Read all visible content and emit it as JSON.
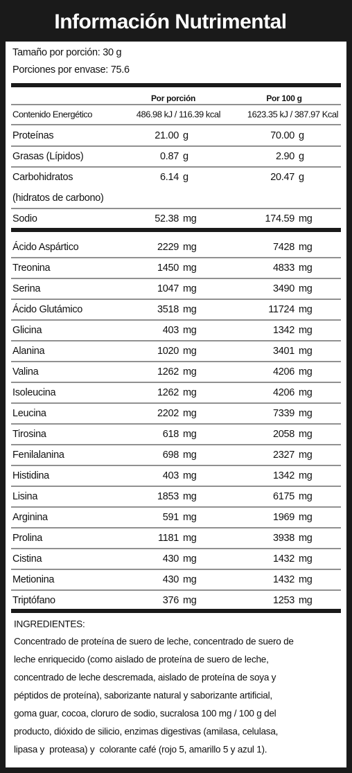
{
  "header": {
    "title": "Información Nutrimental"
  },
  "serving": {
    "size": "Tamaño por porción: 30 g",
    "servings": "Porciones por envase: 75.6"
  },
  "table": {
    "columns": [
      "Por porción",
      "Por 100 g"
    ],
    "energy": {
      "label": "Contenido Energético",
      "per_serving": "486.98 kJ / 116.39 kcal",
      "per_100g": "1623.35 kJ / 387.97 Kcal"
    },
    "nutrients": [
      {
        "label": "Proteínas",
        "per_serving": "21.00",
        "per_100g": "70.00",
        "unit": "g"
      },
      {
        "label": "Grasas (Lípidos)",
        "per_serving": "0.87",
        "per_100g": "2.90",
        "unit": "g"
      },
      {
        "label": "Carbohidratos",
        "sublabel": "(hidratos de carbono)",
        "per_serving": "6.14",
        "per_100g": "20.47",
        "unit": "g"
      },
      {
        "label": "Sodio",
        "per_serving": "52.38",
        "per_100g": "174.59",
        "unit": "mg"
      }
    ],
    "amino_acids": [
      {
        "label": "Ácido Aspártico",
        "per_serving": "2229",
        "per_100g": "7428",
        "unit": "mg"
      },
      {
        "label": "Treonina",
        "per_serving": "1450",
        "per_100g": "4833",
        "unit": "mg"
      },
      {
        "label": "Serina",
        "per_serving": "1047",
        "per_100g": "3490",
        "unit": "mg"
      },
      {
        "label": "Ácido Glutámico",
        "per_serving": "3518",
        "per_100g": "11724",
        "unit": "mg"
      },
      {
        "label": "Glicina",
        "per_serving": "403",
        "per_100g": "1342",
        "unit": "mg"
      },
      {
        "label": "Alanina",
        "per_serving": "1020",
        "per_100g": "3401",
        "unit": "mg"
      },
      {
        "label": "Valina",
        "per_serving": "1262",
        "per_100g": "4206",
        "unit": "mg"
      },
      {
        "label": "Isoleucina",
        "per_serving": "1262",
        "per_100g": "4206",
        "unit": "mg"
      },
      {
        "label": "Leucina",
        "per_serving": "2202",
        "per_100g": "7339",
        "unit": "mg"
      },
      {
        "label": "Tirosina",
        "per_serving": "618",
        "per_100g": "2058",
        "unit": "mg"
      },
      {
        "label": "Fenilalanina",
        "per_serving": "698",
        "per_100g": "2327",
        "unit": "mg"
      },
      {
        "label": "Histidina",
        "per_serving": "403",
        "per_100g": "1342",
        "unit": "mg"
      },
      {
        "label": "Lisina",
        "per_serving": "1853",
        "per_100g": "6175",
        "unit": "mg"
      },
      {
        "label": "Arginina",
        "per_serving": "591",
        "per_100g": "1969",
        "unit": "mg"
      },
      {
        "label": "Prolina",
        "per_serving": "1181",
        "per_100g": "3938",
        "unit": "mg"
      },
      {
        "label": "Cistina",
        "per_serving": "430",
        "per_100g": "1432",
        "unit": "mg"
      },
      {
        "label": "Metionina",
        "per_serving": "430",
        "per_100g": "1432",
        "unit": "mg"
      },
      {
        "label": "Triptófano",
        "per_serving": "376",
        "per_100g": "1253",
        "unit": "mg"
      }
    ]
  },
  "ingredients": {
    "title": "INGREDIENTES:",
    "lines": [
      "Concentrado de proteína de suero de leche, concentrado de suero de",
      "leche enriquecido (como aislado de proteína de suero de leche,",
      "concentrado de leche descremada, aislado de proteína de soya y",
      "péptidos de proteína), saborizante natural y saborizante artificial,",
      "goma guar, cocoa, cloruro de sodio, sucralosa 100 mg / 100 g del",
      "producto, dióxido de silicio, enzimas digestivas (amilasa, celulasa,",
      "lipasa y  proteasa) y  colorante café (rojo 5, amarillo 5 y azul 1)."
    ]
  }
}
